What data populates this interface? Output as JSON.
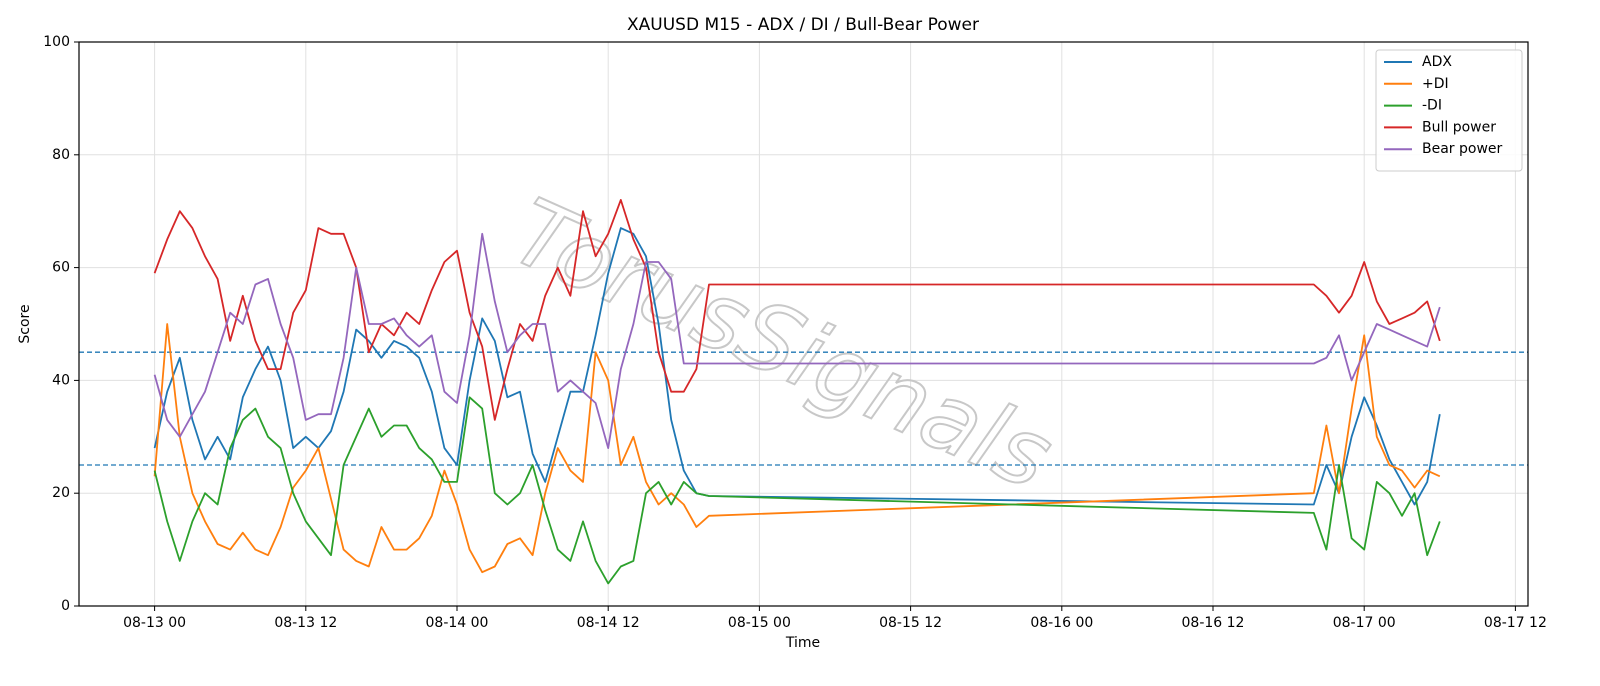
{
  "chart_data": {
    "type": "line",
    "title": "XAUUSD M15 - ADX / DI / Bull-Bear Power",
    "x_label": "Time",
    "y_label": "Score",
    "watermark": "TorusSignals",
    "x": [
      "08-13 00",
      "08-13 01",
      "08-13 02",
      "08-13 03",
      "08-13 04",
      "08-13 05",
      "08-13 06",
      "08-13 07",
      "08-13 08",
      "08-13 09",
      "08-13 10",
      "08-13 11",
      "08-13 12",
      "08-13 13",
      "08-13 14",
      "08-13 15",
      "08-13 16",
      "08-13 17",
      "08-13 18",
      "08-13 19",
      "08-13 20",
      "08-13 21",
      "08-13 22",
      "08-13 23",
      "08-14 00",
      "08-14 01",
      "08-14 02",
      "08-14 03",
      "08-14 04",
      "08-14 05",
      "08-14 06",
      "08-14 07",
      "08-14 08",
      "08-14 09",
      "08-14 10",
      "08-14 11",
      "08-14 12",
      "08-14 13",
      "08-14 14",
      "08-14 15",
      "08-14 16",
      "08-14 17",
      "08-14 18",
      "08-14 19",
      "08-14 20",
      "08-16 20",
      "08-16 21",
      "08-16 22",
      "08-16 23",
      "08-17 00",
      "08-17 01",
      "08-17 02",
      "08-17 03",
      "08-17 04",
      "08-17 05",
      "08-17 06"
    ],
    "series": [
      {
        "name": "ADX",
        "color": "#1f77b4",
        "values": [
          28,
          38,
          44,
          33,
          26,
          30,
          26,
          37,
          42,
          46,
          40,
          28,
          30,
          28,
          31,
          38,
          49,
          47,
          44,
          47,
          46,
          44,
          38,
          28,
          25,
          40,
          51,
          47,
          37,
          38,
          27,
          22,
          30,
          38,
          38,
          48,
          59,
          67,
          66,
          62,
          50,
          33,
          24,
          20,
          19.5,
          18,
          25,
          20,
          30,
          37,
          32,
          26,
          22,
          18,
          22,
          34
        ]
      },
      {
        "name": "+DI",
        "color": "#ff7f0e",
        "values": [
          23,
          50,
          30,
          20,
          15,
          11,
          10,
          13,
          10,
          9,
          14,
          21,
          24,
          28,
          19,
          10,
          8,
          7,
          14,
          10,
          10,
          12,
          16,
          24,
          18,
          10,
          6,
          7,
          11,
          12,
          9,
          20,
          28,
          24,
          22,
          45,
          40,
          25,
          30,
          22,
          18,
          20,
          18,
          14,
          16,
          20,
          32,
          20,
          35,
          48,
          30,
          25,
          24,
          21,
          24,
          23
        ]
      },
      {
        "name": "-DI",
        "color": "#2ca02c",
        "values": [
          24,
          15,
          8,
          15,
          20,
          18,
          28,
          33,
          35,
          30,
          28,
          20,
          15,
          12,
          9,
          25,
          30,
          35,
          30,
          32,
          32,
          28,
          26,
          22,
          22,
          37,
          35,
          20,
          18,
          20,
          25,
          17,
          10,
          8,
          15,
          8,
          4,
          7,
          8,
          20,
          22,
          18,
          22,
          20,
          19.5,
          16.5,
          10,
          25,
          12,
          10,
          22,
          20,
          16,
          20,
          9,
          15
        ]
      },
      {
        "name": "Bull power",
        "color": "#d62728",
        "values": [
          59,
          65,
          70,
          67,
          62,
          58,
          47,
          55,
          47,
          42,
          42,
          52,
          56,
          67,
          66,
          66,
          60,
          45,
          50,
          48,
          52,
          50,
          56,
          61,
          63,
          52,
          46,
          33,
          42,
          50,
          47,
          55,
          60,
          55,
          70,
          62,
          66,
          72,
          65,
          60,
          45,
          38,
          38,
          42,
          57,
          57,
          55,
          52,
          55,
          61,
          54,
          50,
          51,
          52,
          54,
          47
        ]
      },
      {
        "name": "Bear power",
        "color": "#9467bd",
        "values": [
          41,
          33,
          30,
          34,
          38,
          45,
          52,
          50,
          57,
          58,
          50,
          44,
          33,
          34,
          34,
          44,
          60,
          50,
          50,
          51,
          48,
          46,
          48,
          38,
          36,
          48,
          66,
          54,
          45,
          48,
          50,
          50,
          38,
          40,
          38,
          36,
          28,
          42,
          50,
          61,
          61,
          58,
          43,
          43,
          43,
          43,
          44,
          48,
          40,
          45,
          50,
          49,
          48,
          47,
          46,
          53
        ]
      }
    ],
    "hlines": [
      25,
      45
    ],
    "hline_color": "#1f77b4",
    "xlim": [
      "08-12 18",
      "08-17 13"
    ],
    "xticks": [
      "08-13 00",
      "08-13 12",
      "08-14 00",
      "08-14 12",
      "08-15 00",
      "08-15 12",
      "08-16 00",
      "08-16 12",
      "08-17 00",
      "08-17 12"
    ],
    "ylim": [
      0,
      100
    ],
    "yticks": [
      0,
      20,
      40,
      60,
      80,
      100
    ],
    "grid": true,
    "legend": "upper right"
  }
}
